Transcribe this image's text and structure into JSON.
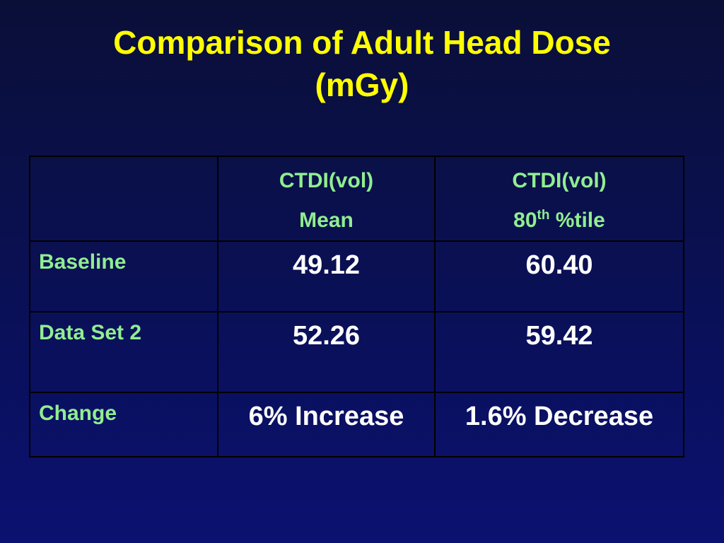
{
  "slide": {
    "title_line1": "Comparison of Adult Head Dose",
    "title_line2": "(mGy)"
  },
  "table": {
    "columns": [
      {
        "line1": "CTDI(vol)",
        "line2": "Mean"
      },
      {
        "line1": "CTDI(vol)",
        "line2_prefix": "80",
        "line2_sup": "th",
        "line2_suffix": " %tile"
      }
    ],
    "rows": [
      {
        "label": "Baseline",
        "mean": "49.12",
        "pct80": "60.40"
      },
      {
        "label": "Data Set 2",
        "mean": "52.26",
        "pct80": "59.42"
      },
      {
        "label": "Change",
        "mean": "6% Increase",
        "pct80": "1.6% Decrease"
      }
    ]
  },
  "colors": {
    "title": "#ffff00",
    "labels": "#90ee90",
    "values": "#ffffff",
    "background": "#0a1050",
    "grid": "#000000"
  }
}
